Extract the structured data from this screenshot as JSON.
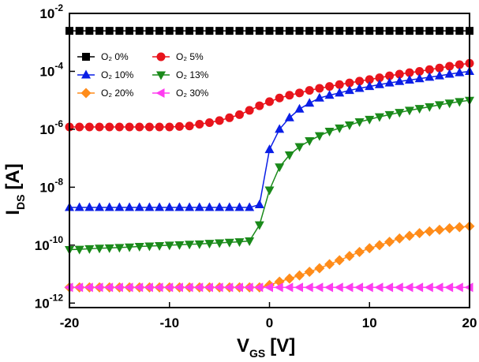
{
  "chart_data": {
    "type": "line",
    "xlabel": {
      "main": "V",
      "sub": "GS",
      "unit": "[V]"
    },
    "ylabel": {
      "main": "I",
      "sub": "DS",
      "unit": "[A]"
    },
    "log_y": true,
    "xlim": [
      -20,
      20
    ],
    "xticks": [
      -20,
      -10,
      0,
      10,
      20
    ],
    "ylim": [
      7e-13,
      0.01
    ],
    "yticks": [
      {
        "value": 1e-12,
        "label": "10",
        "exponent": "-12"
      },
      {
        "value": 1e-10,
        "label": "10",
        "exponent": "-10"
      },
      {
        "value": 1e-08,
        "label": "10",
        "exponent": "-8"
      },
      {
        "value": 1e-06,
        "label": "10",
        "exponent": "-6"
      },
      {
        "value": 0.0001,
        "label": "10",
        "exponent": "-4"
      },
      {
        "value": 0.01,
        "label": "10",
        "exponent": "-2"
      }
    ],
    "legend": "upper left",
    "x": [
      -20,
      -19,
      -18,
      -17,
      -16,
      -15,
      -14,
      -13,
      -12,
      -11,
      -10,
      -9,
      -8,
      -7,
      -6,
      -5,
      -4,
      -3,
      -2,
      -1,
      0,
      1,
      2,
      3,
      4,
      5,
      6,
      7,
      8,
      9,
      10,
      11,
      12,
      13,
      14,
      15,
      16,
      17,
      18,
      19,
      20
    ],
    "series": [
      {
        "name": "O₂ 0%",
        "color": "#000000",
        "marker": "square",
        "values": [
          0.0025,
          0.0025,
          0.0025,
          0.0025,
          0.0025,
          0.0025,
          0.0025,
          0.0025,
          0.0025,
          0.0025,
          0.0025,
          0.0025,
          0.0025,
          0.0025,
          0.0025,
          0.0025,
          0.0025,
          0.0025,
          0.0025,
          0.0025,
          0.0025,
          0.0025,
          0.0025,
          0.0025,
          0.0025,
          0.0025,
          0.0025,
          0.0025,
          0.0025,
          0.0025,
          0.0025,
          0.0025,
          0.0025,
          0.0025,
          0.0025,
          0.0025,
          0.0025,
          0.0025,
          0.0025,
          0.0025,
          0.0025
        ]
      },
      {
        "name": "O₂ 5%",
        "color": "#e8141c",
        "marker": "circle",
        "values": [
          1.2e-06,
          1.2e-06,
          1.2e-06,
          1.2e-06,
          1.2e-06,
          1.2e-06,
          1.2e-06,
          1.2e-06,
          1.2e-06,
          1.2e-06,
          1.2e-06,
          1.25e-06,
          1.3e-06,
          1.5e-06,
          1.7e-06,
          2e-06,
          2.5e-06,
          3.2e-06,
          4.5e-06,
          6.5e-06,
          9e-06,
          1.2e-05,
          1.5e-05,
          1.8e-05,
          2.2e-05,
          2.6e-05,
          3e-05,
          3.5e-05,
          4e-05,
          4.6e-05,
          5.2e-05,
          6e-05,
          7e-05,
          8e-05,
          9e-05,
          0.0001,
          0.000115,
          0.00013,
          0.00015,
          0.00017,
          0.00019
        ]
      },
      {
        "name": "O₂ 10%",
        "color": "#0a1ee6",
        "marker": "triangle-up",
        "values": [
          2e-09,
          2e-09,
          2e-09,
          2e-09,
          2e-09,
          2e-09,
          2e-09,
          2e-09,
          2e-09,
          2e-09,
          2e-09,
          2e-09,
          2e-09,
          2e-09,
          2e-09,
          2e-09,
          2e-09,
          2e-09,
          2e-09,
          2.5e-09,
          2e-07,
          1e-06,
          2.5e-06,
          5e-06,
          8e-06,
          1.2e-05,
          1.5e-05,
          1.8e-05,
          2.2e-05,
          2.6e-05,
          3e-05,
          3.5e-05,
          4e-05,
          4.5e-05,
          5e-05,
          5.6e-05,
          6.3e-05,
          7e-05,
          8e-05,
          9e-05,
          0.0001
        ]
      },
      {
        "name": "O₂ 13%",
        "color": "#1a8a1a",
        "marker": "triangle-down",
        "values": [
          7e-11,
          7.2e-11,
          7.5e-11,
          7.8e-11,
          8e-11,
          8.3e-11,
          8.6e-11,
          9e-11,
          9.3e-11,
          9.6e-11,
          1e-10,
          1.03e-10,
          1.07e-10,
          1.1e-10,
          1.15e-10,
          1.2e-10,
          1.25e-10,
          1.3e-10,
          1.4e-10,
          5e-10,
          8e-09,
          5e-08,
          1.3e-07,
          2.5e-07,
          4e-07,
          6e-07,
          8.5e-07,
          1.1e-06,
          1.4e-06,
          1.8e-06,
          2.2e-06,
          2.7e-06,
          3.2e-06,
          3.8e-06,
          4.5e-06,
          5.2e-06,
          6e-06,
          7e-06,
          8e-06,
          9e-06,
          1e-05
        ]
      },
      {
        "name": "O₂ 20%",
        "color": "#ff8c1a",
        "marker": "diamond",
        "values": [
          3.5e-12,
          3.5e-12,
          3.5e-12,
          3.5e-12,
          3.5e-12,
          3.5e-12,
          3.5e-12,
          3.5e-12,
          3.5e-12,
          3.5e-12,
          3.5e-12,
          3.5e-12,
          3.5e-12,
          3.5e-12,
          3.5e-12,
          3.5e-12,
          3.5e-12,
          3.5e-12,
          3.5e-12,
          3.5e-12,
          4.2e-12,
          5.5e-12,
          7e-12,
          9e-12,
          1.2e-11,
          1.6e-11,
          2.2e-11,
          3e-11,
          4.2e-11,
          5.8e-11,
          7.8e-11,
          1e-10,
          1.3e-10,
          1.7e-10,
          2.1e-10,
          2.6e-10,
          3e-10,
          3.4e-10,
          3.8e-10,
          4.2e-10,
          4.5e-10
        ]
      },
      {
        "name": "O₂ 30%",
        "color": "#ff3cf0",
        "marker": "triangle-left",
        "values": [
          3.5e-12,
          3.5e-12,
          3.5e-12,
          3.5e-12,
          3.5e-12,
          3.5e-12,
          3.5e-12,
          3.5e-12,
          3.5e-12,
          3.5e-12,
          3.5e-12,
          3.5e-12,
          3.5e-12,
          3.5e-12,
          3.5e-12,
          3.5e-12,
          3.5e-12,
          3.5e-12,
          3.5e-12,
          3.5e-12,
          3.5e-12,
          3.5e-12,
          3.5e-12,
          3.5e-12,
          3.5e-12,
          3.5e-12,
          3.5e-12,
          3.5e-12,
          3.5e-12,
          3.5e-12,
          3.5e-12,
          3.5e-12,
          3.5e-12,
          3.5e-12,
          3.5e-12,
          3.5e-12,
          3.5e-12,
          3.5e-12,
          3.5e-12,
          3.5e-12,
          3.5e-12
        ]
      }
    ]
  }
}
